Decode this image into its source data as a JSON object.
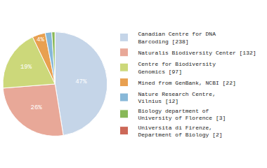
{
  "chart_data": {
    "type": "pie",
    "categories": [
      "Canadian Centre for DNA\nBarcoding [238]",
      "Naturalis Biodiversity Center [132]",
      "Centre for Biodiversity\nGenomics [97]",
      "Mined from GenBank, NCBI [22]",
      "Nature Research Centre,\nVilnius [12]",
      "Biology department of\nUniversity of Florence [3]",
      "Universita di Firenze,\nDepartment of Biology [2]"
    ],
    "values": [
      47,
      26,
      19,
      4,
      2,
      1,
      0
    ],
    "value_labels": [
      "47%",
      "26%",
      "19%",
      "4%",
      null,
      null,
      null
    ],
    "data_labels": true,
    "colors": [
      "#c5d5e8",
      "#e8a898",
      "#ccd87a",
      "#e8a050",
      "#88b8d8",
      "#88b858",
      "#cc6858"
    ],
    "legend": "right"
  }
}
